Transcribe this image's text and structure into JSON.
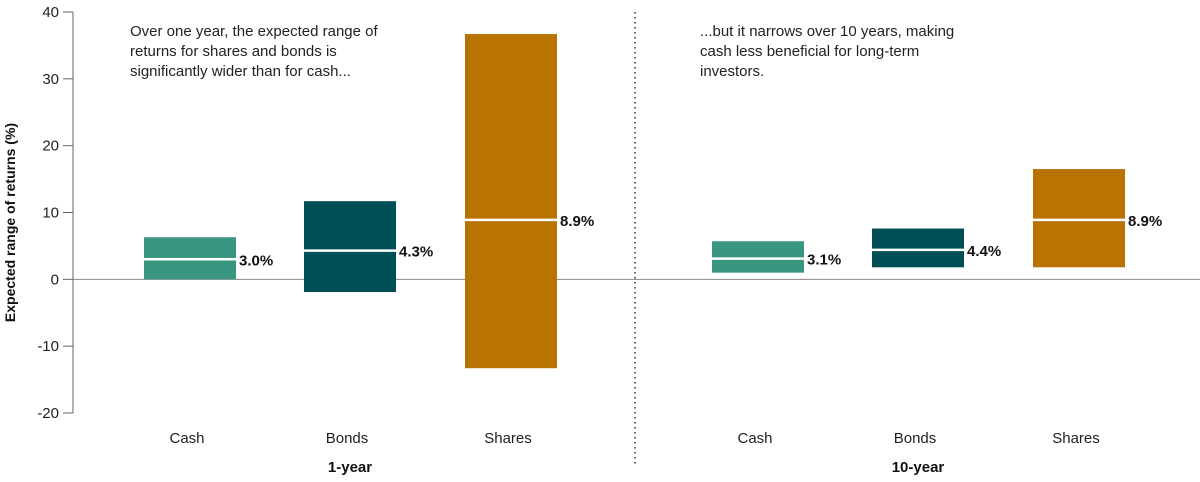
{
  "chart_data": {
    "type": "bar",
    "subtype": "floating-range",
    "ylabel": "Expected range of returns (%)",
    "ylim": [
      -20,
      40
    ],
    "yticks": [
      40,
      30,
      20,
      10,
      0,
      -10,
      -20
    ],
    "grid": false,
    "colors": {
      "Cash": "#3a9680",
      "Bonds": "#004f56",
      "Shares": "#b87300"
    },
    "groups": [
      {
        "label": "1-year",
        "annotation": "Over one year, the expected range of returns for shares and bonds is significantly wider than for cash...",
        "bars": [
          {
            "category": "Cash",
            "low": 0.0,
            "high": 6.3,
            "median": 3.0,
            "label": "3.0%"
          },
          {
            "category": "Bonds",
            "low": -1.9,
            "high": 11.7,
            "median": 4.3,
            "label": "4.3%"
          },
          {
            "category": "Shares",
            "low": -13.3,
            "high": 36.7,
            "median": 8.9,
            "label": "8.9%"
          }
        ]
      },
      {
        "label": "10-year",
        "annotation": "...but it narrows over 10 years, making cash less beneficial for long-term investors.",
        "bars": [
          {
            "category": "Cash",
            "low": 1.0,
            "high": 5.7,
            "median": 3.1,
            "label": "3.1%"
          },
          {
            "category": "Bonds",
            "low": 1.8,
            "high": 7.6,
            "median": 4.4,
            "label": "4.4%"
          },
          {
            "category": "Shares",
            "low": 1.8,
            "high": 16.5,
            "median": 8.9,
            "label": "8.9%"
          }
        ]
      }
    ]
  }
}
